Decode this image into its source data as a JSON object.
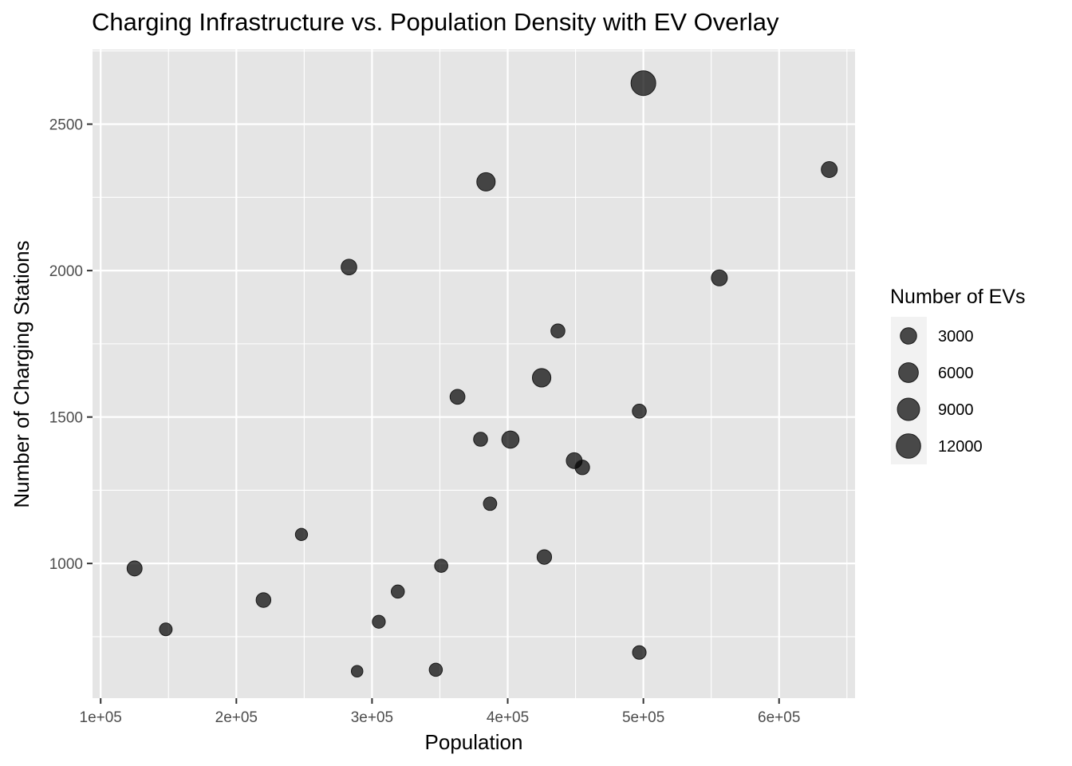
{
  "chart_data": {
    "type": "scatter",
    "title": "Charging Infrastructure vs. Population Density with EV Overlay",
    "xlabel": "Population",
    "ylabel": "Number of Charging Stations",
    "xlim": [
      94000,
      656000
    ],
    "ylim": [
      540,
      2755
    ],
    "x_ticks": [
      100000,
      200000,
      300000,
      400000,
      500000,
      600000
    ],
    "x_tick_labels": [
      "1e+05",
      "2e+05",
      "3e+05",
      "4e+05",
      "5e+05",
      "6e+05"
    ],
    "y_ticks": [
      1000,
      1500,
      2000,
      2500
    ],
    "y_tick_labels": [
      "1000",
      "1500",
      "2000",
      "2500"
    ],
    "grid": true,
    "size_legend": {
      "title": "Number of EVs",
      "placement": "right",
      "entries": [
        {
          "label": "3000",
          "value": 3000
        },
        {
          "label": "6000",
          "value": 6000
        },
        {
          "label": "9000",
          "value": 9000
        },
        {
          "label": "12000",
          "value": 12000
        }
      ]
    },
    "points": [
      {
        "x": 500000,
        "y": 2640,
        "evs": 12500
      },
      {
        "x": 637000,
        "y": 2345,
        "evs": 2700
      },
      {
        "x": 384000,
        "y": 2303,
        "evs": 4700
      },
      {
        "x": 283000,
        "y": 2012,
        "evs": 2500
      },
      {
        "x": 556000,
        "y": 1975,
        "evs": 2700
      },
      {
        "x": 437000,
        "y": 1794,
        "evs": 1500
      },
      {
        "x": 425000,
        "y": 1634,
        "evs": 4800
      },
      {
        "x": 363000,
        "y": 1569,
        "evs": 2000
      },
      {
        "x": 497000,
        "y": 1520,
        "evs": 1500
      },
      {
        "x": 380000,
        "y": 1424,
        "evs": 1500
      },
      {
        "x": 402000,
        "y": 1423,
        "evs": 3700
      },
      {
        "x": 449000,
        "y": 1351,
        "evs": 2600
      },
      {
        "x": 455000,
        "y": 1328,
        "evs": 1800
      },
      {
        "x": 387000,
        "y": 1204,
        "evs": 1200
      },
      {
        "x": 248000,
        "y": 1099,
        "evs": 700
      },
      {
        "x": 427000,
        "y": 1022,
        "evs": 1800
      },
      {
        "x": 351000,
        "y": 992,
        "evs": 1100
      },
      {
        "x": 125000,
        "y": 983,
        "evs": 2100
      },
      {
        "x": 319000,
        "y": 904,
        "evs": 1100
      },
      {
        "x": 220000,
        "y": 875,
        "evs": 1900
      },
      {
        "x": 305000,
        "y": 801,
        "evs": 1000
      },
      {
        "x": 148000,
        "y": 775,
        "evs": 900
      },
      {
        "x": 497000,
        "y": 696,
        "evs": 1300
      },
      {
        "x": 347000,
        "y": 637,
        "evs": 1100
      },
      {
        "x": 289000,
        "y": 632,
        "evs": 500
      }
    ]
  }
}
